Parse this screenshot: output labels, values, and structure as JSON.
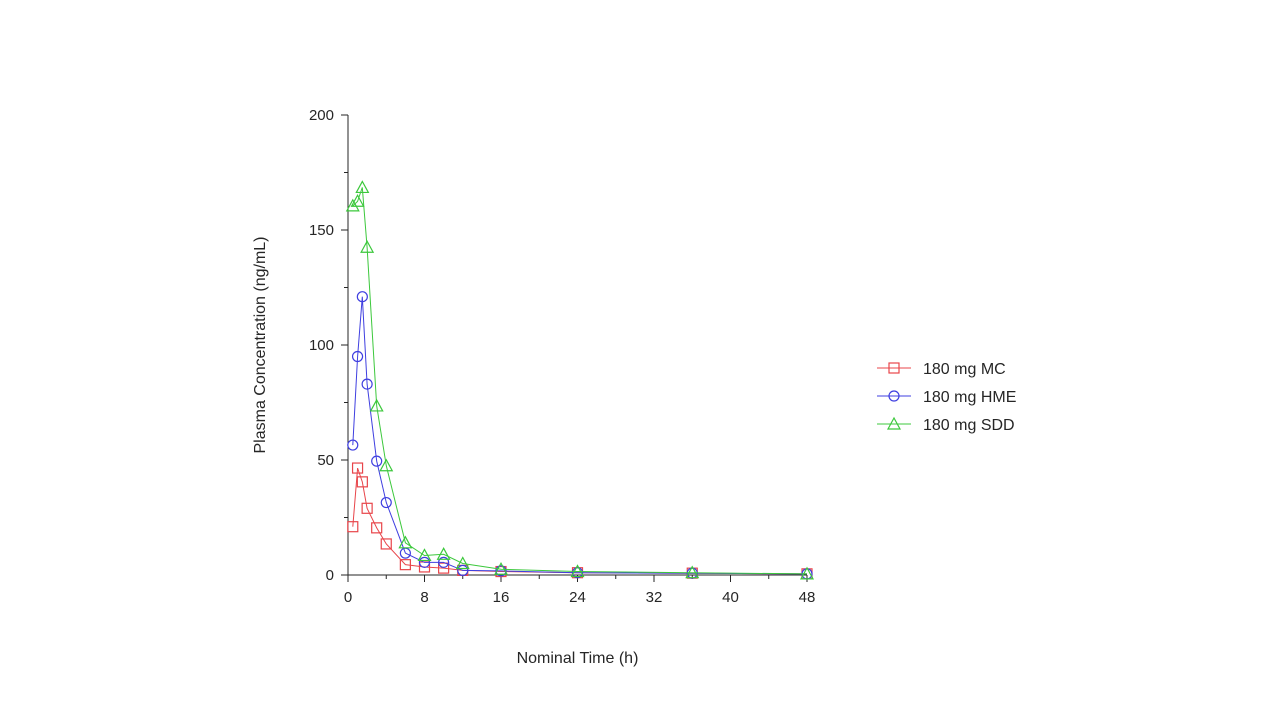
{
  "chart_data": {
    "type": "line",
    "title": "",
    "xlabel": "Nominal Time (h)",
    "ylabel": "Plasma Concentration (ng/mL)",
    "xlim": [
      0,
      48
    ],
    "ylim": [
      0,
      200
    ],
    "xticks": [
      0,
      8,
      16,
      24,
      32,
      40,
      48
    ],
    "yticks": [
      0,
      50,
      100,
      150,
      200
    ],
    "xtick_labels": [
      "0",
      "8",
      "16",
      "24",
      "32",
      "40",
      "48"
    ],
    "ytick_labels": [
      "0",
      "50",
      "100",
      "150",
      "200"
    ],
    "grid": false,
    "legend_position": "right",
    "series": [
      {
        "name": "180 mg MC",
        "color": "#e8454a",
        "marker": "square",
        "x": [
          0.5,
          1,
          1.5,
          2,
          3,
          4,
          6,
          8,
          10,
          12,
          16,
          24,
          36,
          48
        ],
        "values": [
          21,
          46.5,
          40.5,
          29,
          20.5,
          13.5,
          4.5,
          3.5,
          3,
          2,
          1.5,
          1,
          0.8,
          0.5
        ]
      },
      {
        "name": "180 mg HME",
        "color": "#3f3fe0",
        "marker": "circle",
        "x": [
          0.5,
          1,
          1.5,
          2,
          3,
          4,
          6,
          8,
          10,
          12,
          16,
          24,
          36,
          48
        ],
        "values": [
          56.5,
          95,
          121,
          83,
          49.5,
          31.5,
          9.5,
          5.5,
          5.5,
          2,
          1.8,
          1,
          0.8,
          0.5
        ]
      },
      {
        "name": "180 mg SDD",
        "color": "#3cc83c",
        "marker": "triangle",
        "x": [
          0.5,
          1,
          1.5,
          2,
          3,
          4,
          6,
          8,
          10,
          12,
          16,
          24,
          36,
          48
        ],
        "values": [
          160.5,
          162.5,
          168.5,
          142.5,
          73.5,
          47.5,
          14,
          8.5,
          9,
          5,
          2.5,
          1.5,
          1,
          0.5
        ]
      }
    ]
  }
}
